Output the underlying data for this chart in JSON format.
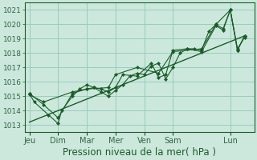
{
  "background_color": "#cce8dc",
  "grid_color": "#99ccbb",
  "line_color": "#1a5c2a",
  "marker_color": "#1a5c2a",
  "xlabel": "Pression niveau de la mer( hPa )",
  "ylim": [
    1012.5,
    1021.5
  ],
  "yticks": [
    1013,
    1014,
    1015,
    1016,
    1017,
    1018,
    1019,
    1020,
    1021
  ],
  "day_labels": [
    "Jeu",
    "Dim",
    "Mar",
    "Mer",
    "Ven",
    "Sam",
    "Lun"
  ],
  "day_positions": [
    0,
    24,
    48,
    72,
    96,
    120,
    168
  ],
  "xlim": [
    -4,
    188
  ],
  "trend_x": [
    0,
    180
  ],
  "trend_y": [
    1013.2,
    1019.2
  ],
  "series_a_x": [
    0,
    4,
    16,
    24,
    27,
    36,
    42,
    48,
    54,
    60,
    66,
    72,
    78,
    84,
    90,
    96,
    102,
    108,
    114,
    120,
    126,
    132,
    138,
    144,
    150,
    156,
    162,
    168,
    174,
    180
  ],
  "series_a_y": [
    1015.2,
    1014.6,
    1013.7,
    1013.1,
    1014.0,
    1015.0,
    1015.5,
    1015.8,
    1015.6,
    1015.3,
    1015.0,
    1015.4,
    1015.8,
    1016.4,
    1016.6,
    1016.5,
    1017.1,
    1017.3,
    1016.2,
    1017.0,
    1018.0,
    1018.3,
    1018.3,
    1018.2,
    1019.5,
    1020.0,
    1019.7,
    1021.0,
    1018.2,
    1019.2
  ],
  "series_b_x": [
    0,
    12,
    24,
    36,
    48,
    54,
    60,
    66,
    72,
    78,
    90,
    102,
    108,
    114,
    120,
    132,
    144,
    156,
    162,
    168,
    174,
    180
  ],
  "series_b_y": [
    1015.2,
    1014.4,
    1013.5,
    1015.2,
    1015.5,
    1015.6,
    1015.5,
    1015.3,
    1015.6,
    1016.5,
    1016.4,
    1017.3,
    1016.3,
    1016.5,
    1018.2,
    1018.3,
    1018.1,
    1019.9,
    1019.6,
    1021.0,
    1018.3,
    1019.1
  ],
  "series_c_x": [
    0,
    12,
    36,
    48,
    66,
    72,
    90,
    108,
    120,
    144,
    156,
    168,
    174,
    180
  ],
  "series_c_y": [
    1015.1,
    1014.6,
    1015.3,
    1015.5,
    1015.6,
    1016.5,
    1017.0,
    1016.6,
    1018.1,
    1018.3,
    1020.0,
    1021.0,
    1018.2,
    1019.2
  ],
  "tick_color": "#336644",
  "xlabel_fontsize": 8.5,
  "ytick_fontsize": 6.5,
  "xtick_fontsize": 7
}
